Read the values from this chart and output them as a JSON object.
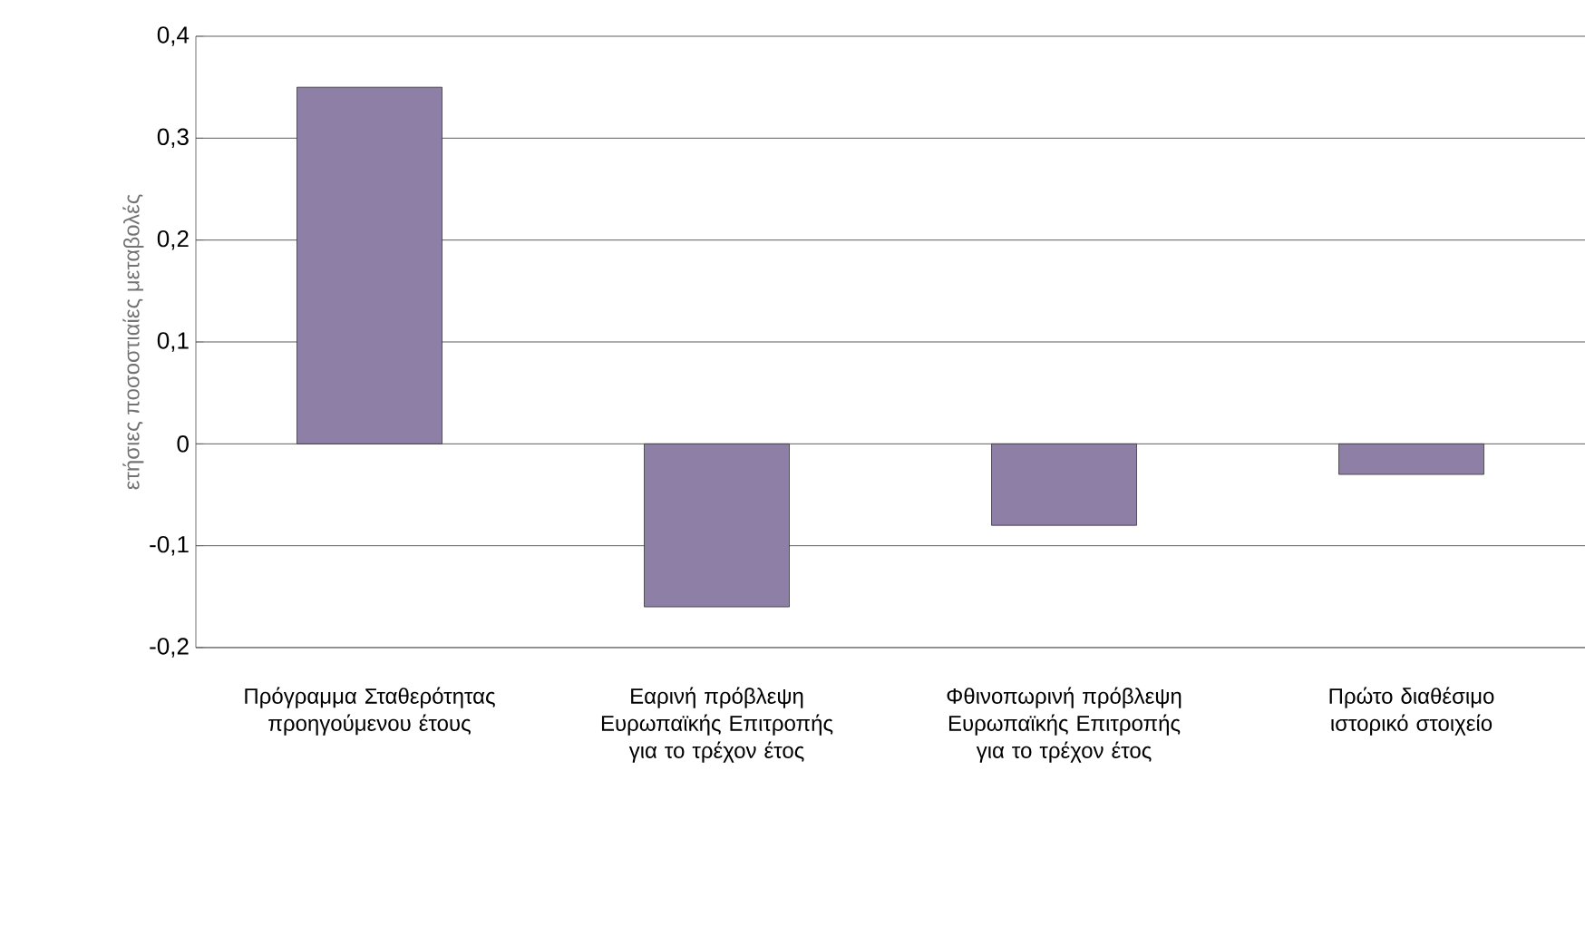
{
  "chart_data": {
    "type": "bar",
    "ylabel": "ετήσιες ποσοστιαίες μεταβολές",
    "categories": [
      "Πρόγραμμα Σταθερότητας προηγούμενου έτους",
      "Εαρινή πρόβλεψη Ευρωπαϊκής Επιτροπής για το τρέχον έτος",
      "Φθινοπωρινή πρόβλεψη Ευρωπαϊκής Επιτροπής για το τρέχον έτος",
      "Πρώτο διαθέσιμο ιστορικό στοιχείο"
    ],
    "values": [
      0.35,
      -0.16,
      -0.08,
      -0.03
    ],
    "color": "#8e7fa6",
    "ylim": [
      -0.2,
      0.4
    ],
    "yticks": [
      {
        "value": -0.2,
        "label": "-0,2"
      },
      {
        "value": -0.1,
        "label": "-0,1"
      },
      0,
      {
        "value": 0.1,
        "label": "0,1"
      },
      {
        "value": 0.2,
        "label": "0,2"
      },
      {
        "value": 0.3,
        "label": "0,3"
      },
      {
        "value": 0.4,
        "label": "0,4"
      }
    ],
    "grid": "y"
  }
}
